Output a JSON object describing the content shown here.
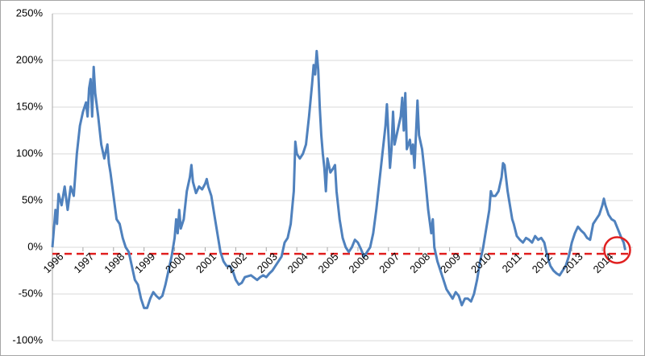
{
  "chart_data": {
    "type": "line",
    "x": [
      1996.0,
      1996.05,
      1996.1,
      1996.15,
      1996.2,
      1996.3,
      1996.4,
      1996.5,
      1996.6,
      1996.7,
      1996.8,
      1996.9,
      1997.0,
      1997.1,
      1997.15,
      1997.2,
      1997.25,
      1997.3,
      1997.35,
      1997.4,
      1997.5,
      1997.6,
      1997.7,
      1997.8,
      1997.85,
      1997.9,
      1998.0,
      1998.1,
      1998.2,
      1998.3,
      1998.4,
      1998.5,
      1998.6,
      1998.7,
      1998.8,
      1998.9,
      1999.0,
      1999.1,
      1999.2,
      1999.3,
      1999.4,
      1999.5,
      1999.6,
      1999.7,
      1999.8,
      1999.9,
      2000.0,
      2000.05,
      2000.1,
      2000.15,
      2000.2,
      2000.3,
      2000.4,
      2000.5,
      2000.55,
      2000.6,
      2000.7,
      2000.8,
      2000.9,
      2001.0,
      2001.05,
      2001.1,
      2001.2,
      2001.3,
      2001.4,
      2001.5,
      2001.6,
      2001.7,
      2001.8,
      2001.9,
      2002.0,
      2002.1,
      2002.2,
      2002.3,
      2002.5,
      2002.7,
      2002.8,
      2002.9,
      2003.0,
      2003.1,
      2003.2,
      2003.3,
      2003.4,
      2003.5,
      2003.6,
      2003.7,
      2003.8,
      2003.9,
      2003.95,
      2004.0,
      2004.1,
      2004.2,
      2004.3,
      2004.4,
      2004.5,
      2004.55,
      2004.6,
      2004.65,
      2004.7,
      2004.75,
      2004.8,
      2004.85,
      2004.9,
      2004.95,
      2005.0,
      2005.1,
      2005.2,
      2005.25,
      2005.3,
      2005.4,
      2005.5,
      2005.6,
      2005.7,
      2005.8,
      2005.9,
      2006.0,
      2006.1,
      2006.2,
      2006.3,
      2006.4,
      2006.5,
      2006.6,
      2006.7,
      2006.8,
      2006.9,
      2006.95,
      2007.0,
      2007.05,
      2007.1,
      2007.15,
      2007.2,
      2007.3,
      2007.4,
      2007.45,
      2007.5,
      2007.55,
      2007.6,
      2007.7,
      2007.75,
      2007.8,
      2007.85,
      2007.9,
      2007.95,
      2008.0,
      2008.1,
      2008.2,
      2008.3,
      2008.4,
      2008.45,
      2008.5,
      2008.6,
      2008.7,
      2008.8,
      2008.9,
      2009.0,
      2009.1,
      2009.2,
      2009.3,
      2009.4,
      2009.5,
      2009.6,
      2009.7,
      2009.8,
      2009.9,
      2010.0,
      2010.1,
      2010.2,
      2010.3,
      2010.35,
      2010.4,
      2010.5,
      2010.6,
      2010.7,
      2010.75,
      2010.8,
      2010.9,
      2011.0,
      2011.05,
      2011.1,
      2011.2,
      2011.3,
      2011.4,
      2011.5,
      2011.6,
      2011.7,
      2011.8,
      2011.9,
      2012.0,
      2012.1,
      2012.2,
      2012.3,
      2012.4,
      2012.5,
      2012.6,
      2012.7,
      2012.8,
      2012.9,
      2013.0,
      2013.1,
      2013.2,
      2013.3,
      2013.4,
      2013.5,
      2013.6,
      2013.7,
      2013.8,
      2013.9,
      2014.0,
      2014.05,
      2014.1,
      2014.2,
      2014.3,
      2014.4,
      2014.5,
      2014.6,
      2014.7,
      2014.75
    ],
    "values": [
      0,
      20,
      40,
      25,
      57,
      45,
      65,
      40,
      65,
      55,
      100,
      130,
      145,
      155,
      140,
      170,
      180,
      140,
      193,
      165,
      140,
      110,
      95,
      110,
      90,
      80,
      55,
      30,
      25,
      10,
      0,
      -5,
      -20,
      -35,
      -40,
      -55,
      -65,
      -65,
      -55,
      -48,
      -52,
      -55,
      -52,
      -40,
      -25,
      -10,
      10,
      30,
      15,
      40,
      20,
      30,
      60,
      75,
      88,
      70,
      58,
      65,
      62,
      68,
      73,
      65,
      55,
      35,
      15,
      -5,
      -15,
      -20,
      -20,
      -25,
      -35,
      -40,
      -38,
      -32,
      -30,
      -35,
      -32,
      -30,
      -32,
      -28,
      -25,
      -20,
      -15,
      -10,
      5,
      10,
      25,
      60,
      113,
      100,
      95,
      100,
      110,
      140,
      175,
      195,
      185,
      210,
      190,
      150,
      120,
      100,
      85,
      60,
      95,
      80,
      85,
      88,
      60,
      30,
      10,
      0,
      -5,
      0,
      8,
      5,
      -2,
      -10,
      -5,
      0,
      15,
      40,
      70,
      100,
      130,
      153,
      120,
      85,
      105,
      145,
      110,
      125,
      140,
      160,
      125,
      165,
      105,
      115,
      100,
      110,
      85,
      120,
      157,
      120,
      105,
      75,
      40,
      15,
      30,
      0,
      -15,
      -25,
      -35,
      -45,
      -50,
      -55,
      -48,
      -52,
      -62,
      -55,
      -55,
      -58,
      -50,
      -35,
      -15,
      0,
      20,
      40,
      60,
      55,
      55,
      60,
      75,
      90,
      88,
      60,
      40,
      30,
      25,
      12,
      8,
      5,
      10,
      8,
      5,
      12,
      8,
      10,
      5,
      -10,
      -20,
      -25,
      -28,
      -30,
      -25,
      -20,
      -10,
      5,
      15,
      22,
      18,
      15,
      10,
      8,
      25,
      30,
      35,
      45,
      52,
      45,
      35,
      30,
      28,
      20,
      12,
      5,
      -3
    ],
    "color": "#4f81bd",
    "xlim": [
      1996,
      2015.0
    ],
    "xticks": [
      1996,
      1997,
      1998,
      1999,
      2000,
      2001,
      2002,
      2003,
      2004,
      2005,
      2006,
      2007,
      2008,
      2009,
      2010,
      2011,
      2012,
      2013,
      2014
    ],
    "ylim": [
      -100,
      250
    ],
    "yticks": [
      {
        "value": -100,
        "label": "-100%"
      },
      {
        "value": -50,
        "label": "-50%"
      },
      {
        "value": 0,
        "label": "0%"
      },
      {
        "value": 50,
        "label": "50%"
      },
      {
        "value": 100,
        "label": "100%"
      },
      {
        "value": 150,
        "label": "150%"
      },
      {
        "value": 200,
        "label": "200%"
      },
      {
        "value": 250,
        "label": "250%"
      }
    ],
    "grid": true,
    "hline": -7,
    "hline_color": "#e02020",
    "highlight_color": "#e02020"
  }
}
